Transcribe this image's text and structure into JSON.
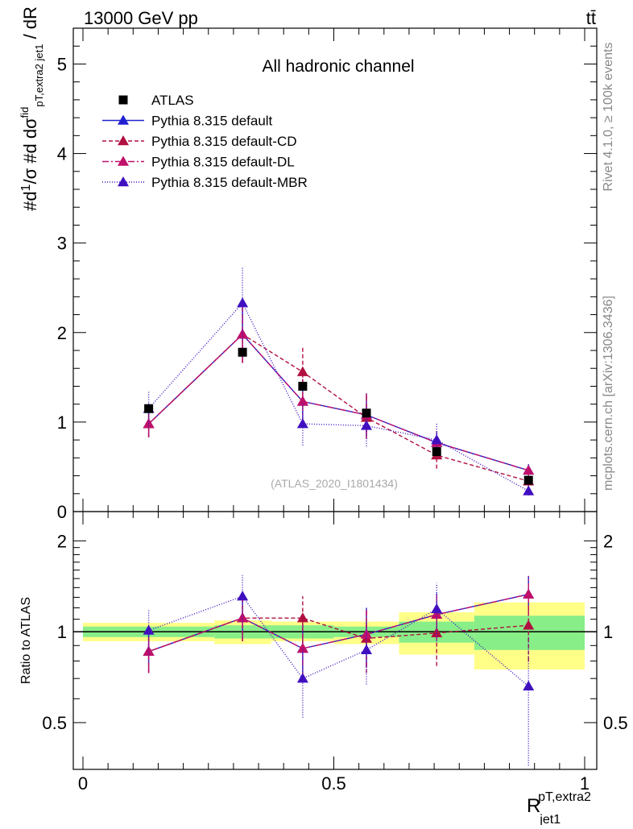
{
  "header": {
    "energy_label": "13000 GeV pp",
    "process_label": "tt̄"
  },
  "side_labels": {
    "rivet": "Rivet 4.1.0, ≥ 100k events",
    "mcplots": "mcplots.cern.ch [arXiv:1306.3436]"
  },
  "chart_data": [
    {
      "type": "line",
      "panel": "main",
      "title": "All hadronic channel",
      "xlabel": "R_jet1^{pT,extra2}",
      "ylabel": "#d(1/σ) #d dσ^fid_{p_T,extra2 jet1} / dR",
      "watermark": "(ATLAS_2020_I1801434)",
      "xlim": [
        0,
        1
      ],
      "ylim": [
        0,
        5.4
      ],
      "x_ticks": [
        0,
        0.5,
        1
      ],
      "y_ticks": [
        0,
        1,
        2,
        3,
        4,
        5
      ],
      "y_tick_labels": [
        "0",
        "1",
        "2",
        "3",
        "4",
        "5"
      ],
      "legend_position": "top-left",
      "x": [
        0.131,
        0.318,
        0.438,
        0.565,
        0.705,
        0.888
      ],
      "series": [
        {
          "name": "ATLAS",
          "kind": "data",
          "color": "#000000",
          "marker": "square",
          "values": [
            1.15,
            1.78,
            1.4,
            1.1,
            0.67,
            0.35
          ],
          "xerr": [
            [
              0.0,
              0.262
            ],
            [
              0.262,
              0.375
            ],
            [
              0.375,
              0.5
            ],
            [
              0.5,
              0.63
            ],
            [
              0.63,
              0.78
            ],
            [
              0.78,
              1.0
            ]
          ]
        },
        {
          "name": "Pythia 8.315 default",
          "kind": "mc",
          "color": "#2020d0",
          "dash": "solid",
          "marker": "triangle",
          "values": [
            0.98,
            1.98,
            1.23,
            1.08,
            0.77,
            0.46
          ],
          "yerr": [
            0.15,
            0.32,
            0.25,
            0.24,
            0.13,
            0.07
          ]
        },
        {
          "name": "Pythia 8.315 default-CD",
          "kind": "mc",
          "color": "#b01040",
          "dash": "5,3",
          "marker": "triangle",
          "values": [
            0.98,
            1.98,
            1.56,
            1.05,
            0.63,
            0.34
          ],
          "yerr": [
            0.15,
            0.32,
            0.28,
            0.24,
            0.15,
            0.08
          ]
        },
        {
          "name": "Pythia 8.315 default-DL",
          "kind": "mc",
          "color": "#c0106a",
          "dash": "8,3,2,3",
          "marker": "triangle",
          "values": [
            0.98,
            1.98,
            1.23,
            1.08,
            0.77,
            0.46
          ],
          "yerr": [
            0.15,
            0.32,
            0.25,
            0.24,
            0.13,
            0.07
          ]
        },
        {
          "name": "Pythia 8.315 default-MBR",
          "kind": "mc",
          "color": "#4010c0",
          "dash": "1,2",
          "marker": "triangle",
          "values": [
            1.15,
            2.33,
            0.98,
            0.96,
            0.8,
            0.23
          ],
          "yerr": [
            0.2,
            0.4,
            0.24,
            0.23,
            0.18,
            0.05
          ]
        }
      ]
    },
    {
      "type": "line",
      "panel": "ratio",
      "ylabel": "Ratio to ATLAS",
      "xlim": [
        0,
        1
      ],
      "ylim": [
        0.35,
        2.5
      ],
      "y_scale": "log",
      "x_ticks": [
        0,
        0.5,
        1
      ],
      "x_tick_labels": [
        "0",
        "0.5",
        "1"
      ],
      "y_ticks": [
        0.5,
        1,
        2
      ],
      "y_tick_labels": [
        "0.5",
        "1",
        "2"
      ],
      "x": [
        0.131,
        0.318,
        0.438,
        0.565,
        0.705,
        0.888
      ],
      "bands": {
        "bins": [
          [
            0.0,
            0.262
          ],
          [
            0.262,
            0.375
          ],
          [
            0.375,
            0.5
          ],
          [
            0.5,
            0.63
          ],
          [
            0.63,
            0.78
          ],
          [
            0.78,
            1.0
          ]
        ],
        "stat_color": "#88ee88",
        "total_color": "#ffff88",
        "stat": [
          [
            0.96,
            1.04
          ],
          [
            0.95,
            1.05
          ],
          [
            0.95,
            1.05
          ],
          [
            0.96,
            1.04
          ],
          [
            0.92,
            1.08
          ],
          [
            0.87,
            1.13
          ]
        ],
        "total": [
          [
            0.93,
            1.07
          ],
          [
            0.91,
            1.09
          ],
          [
            0.93,
            1.08
          ],
          [
            0.91,
            1.08
          ],
          [
            0.84,
            1.16
          ],
          [
            0.75,
            1.25
          ]
        ]
      },
      "series": [
        {
          "name": "Pythia 8.315 default",
          "color": "#2020d0",
          "dash": "solid",
          "values": [
            0.86,
            1.11,
            0.88,
            0.98,
            1.14,
            1.33
          ],
          "yerr": [
            0.13,
            0.18,
            0.18,
            0.22,
            0.2,
            0.2
          ]
        },
        {
          "name": "Pythia 8.315 default-CD",
          "color": "#b01040",
          "dash": "5,3",
          "values": [
            0.86,
            1.11,
            1.11,
            0.95,
            0.99,
            1.05
          ],
          "yerr": [
            0.13,
            0.18,
            0.2,
            0.22,
            0.22,
            0.25
          ]
        },
        {
          "name": "Pythia 8.315 default-DL",
          "color": "#c0106a",
          "dash": "8,3,2,3",
          "values": [
            0.86,
            1.11,
            0.88,
            0.98,
            1.14,
            1.33
          ],
          "yerr": [
            0.13,
            0.18,
            0.18,
            0.22,
            0.2,
            0.2
          ]
        },
        {
          "name": "Pythia 8.315 default-MBR",
          "color": "#4010c0",
          "dash": "1,2",
          "values": [
            1.01,
            1.31,
            0.7,
            0.87,
            1.19,
            0.66
          ],
          "yerr": [
            0.17,
            0.23,
            0.18,
            0.2,
            0.26,
            0.3
          ]
        }
      ]
    }
  ]
}
